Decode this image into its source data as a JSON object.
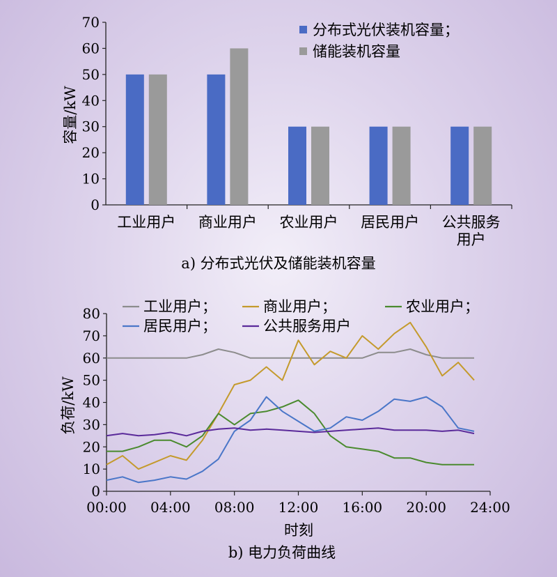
{
  "chart_data": [
    {
      "type": "bar",
      "caption": "a) 分布式光伏及储能装机容量",
      "ylabel": "容量/kW",
      "ylim": [
        0,
        70
      ],
      "yticks": [
        0,
        10,
        20,
        30,
        40,
        50,
        60,
        70
      ],
      "categories": [
        "工业用户",
        "商业用户",
        "农业用户",
        "居民用户",
        "公共服务用户"
      ],
      "category_lines": [
        [
          "工业用户"
        ],
        [
          "商业用户"
        ],
        [
          "农业用户"
        ],
        [
          "居民用户"
        ],
        [
          "公共服务",
          "用户"
        ]
      ],
      "legend_position": "top-right",
      "series": [
        {
          "name": "分布式光伏装机容量；",
          "color": "#4a6bc4",
          "values": [
            50,
            50,
            30,
            30,
            30
          ]
        },
        {
          "name": "储能装机容量",
          "color": "#9a9a9a",
          "values": [
            50,
            60,
            30,
            30,
            30
          ]
        }
      ]
    },
    {
      "type": "line",
      "caption": "b) 电力负荷曲线",
      "xlabel": "时刻",
      "ylabel": "负荷/kW",
      "xlim": [
        0,
        24
      ],
      "ylim": [
        0,
        80
      ],
      "xticks": [
        0,
        4,
        8,
        12,
        16,
        20,
        24
      ],
      "xtick_labels": [
        "00:00",
        "04:00",
        "08:00",
        "12:00",
        "16:00",
        "20:00",
        "24:00"
      ],
      "yticks": [
        0,
        10,
        20,
        30,
        40,
        50,
        60,
        70,
        80
      ],
      "x": [
        0,
        1,
        2,
        3,
        4,
        5,
        6,
        7,
        8,
        9,
        10,
        11,
        12,
        13,
        14,
        15,
        16,
        17,
        18,
        19,
        20,
        21,
        22,
        23
      ],
      "legend_position": "top",
      "series": [
        {
          "name": "工业用户；",
          "color": "#8c8c8c",
          "values": [
            60,
            60,
            60,
            60,
            60,
            60,
            61.5,
            64,
            62.5,
            60,
            60,
            60,
            60,
            60,
            60,
            60,
            60,
            62.5,
            62.5,
            64,
            61.5,
            60,
            60,
            60
          ]
        },
        {
          "name": "商业用户；",
          "color": "#c49a2c",
          "values": [
            12,
            16,
            10,
            13,
            16,
            14,
            23,
            35,
            48,
            50,
            56,
            50,
            68,
            57,
            63,
            60,
            70,
            64,
            71,
            76,
            65,
            52,
            58,
            50
          ]
        },
        {
          "name": "农业用户；",
          "color": "#4a8a2e",
          "values": [
            18,
            18,
            20,
            23,
            23,
            20,
            25,
            35,
            30,
            35,
            36,
            38,
            41,
            35,
            25,
            20,
            19,
            18,
            15,
            15,
            13,
            12,
            12,
            12
          ]
        },
        {
          "name": "居民用户；",
          "color": "#4a76c8",
          "values": [
            5,
            6.5,
            4,
            5,
            6.5,
            5.5,
            9,
            14.5,
            27,
            32,
            42.5,
            36,
            31.5,
            27,
            28.5,
            33.5,
            32,
            36,
            41.5,
            40.5,
            42.5,
            38,
            28.5,
            27
          ]
        },
        {
          "name": "公共服务用户",
          "color": "#5a2a9a",
          "values": [
            25,
            26,
            25,
            25.5,
            26.5,
            25,
            27,
            28,
            28.5,
            27.5,
            28,
            27.5,
            27,
            26.5,
            27,
            27.5,
            28,
            28.5,
            27.5,
            27.5,
            27.5,
            27,
            27.5,
            26
          ]
        }
      ]
    }
  ]
}
